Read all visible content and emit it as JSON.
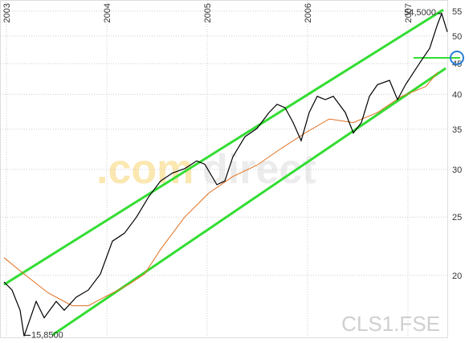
{
  "chart_data": {
    "type": "line",
    "log_scale": true,
    "grid": true,
    "xlim": [
      2002.936,
      2007.4
    ],
    "xticks": [
      2003,
      2004,
      2005,
      2006,
      2007
    ],
    "ylim": [
      15.77,
      57.4
    ],
    "yticks": [
      20,
      25,
      30,
      35,
      40,
      45,
      50,
      55
    ],
    "series": [
      {
        "color": "#000000",
        "x": [
          2002.976,
          2003.056,
          2003.136,
          2003.176,
          2003.296,
          2003.376,
          2003.496,
          2003.576,
          2003.696,
          2003.816,
          2003.936,
          2004.056,
          2004.176,
          2004.296,
          2004.416,
          2004.536,
          2004.656,
          2004.776,
          2004.896,
          2004.976,
          2005.096,
          2005.176,
          2005.256,
          2005.376,
          2005.496,
          2005.616,
          2005.696,
          2005.776,
          2005.856,
          2005.936,
          2006.016,
          2006.096,
          2006.176,
          2006.256,
          2006.376,
          2006.456,
          2006.536,
          2006.616,
          2006.696,
          2006.816,
          2006.896,
          2006.976,
          2007.056,
          2007.136,
          2007.216,
          2007.296,
          2007.336,
          2007.392
        ],
        "values": [
          19.5,
          18.9,
          17.5,
          15.85,
          18.1,
          17.0,
          18.1,
          17.5,
          18.4,
          18.9,
          20.1,
          22.8,
          23.5,
          25.0,
          27.0,
          28.7,
          29.6,
          30.1,
          31.0,
          30.6,
          28.3,
          28.7,
          31.5,
          34.0,
          35.1,
          37.3,
          38.5,
          38.0,
          35.9,
          33.5,
          37.3,
          39.7,
          39.2,
          39.7,
          37.3,
          34.5,
          35.9,
          39.7,
          41.5,
          42.2,
          39.2,
          41.5,
          43.5,
          45.6,
          47.7,
          52.4,
          54.5,
          50.8
        ]
      },
      {
        "color": "#e07020",
        "x": [
          2002.976,
          2003.176,
          2003.416,
          2003.656,
          2003.816,
          2003.976,
          2004.216,
          2004.376,
          2004.536,
          2004.776,
          2005.016,
          2005.256,
          2005.496,
          2005.736,
          2005.976,
          2006.216,
          2006.456,
          2006.696,
          2006.936,
          2007.176,
          2007.296
        ],
        "values": [
          21.4,
          20.1,
          18.7,
          17.8,
          17.8,
          18.4,
          19.3,
          20.1,
          22.1,
          25.0,
          27.4,
          29.2,
          30.5,
          32.5,
          34.5,
          36.4,
          35.9,
          37.3,
          39.7,
          41.2,
          43.5
        ]
      }
    ],
    "channel": {
      "color": "#33dd33",
      "lines": [
        {
          "x": [
            2002.976,
            2007.352
          ],
          "values": [
            19.3,
            55.3
          ]
        },
        {
          "x": [
            2003.456,
            2007.376
          ],
          "values": [
            15.9,
            44.2
          ]
        }
      ],
      "level": {
        "x": [
          2007.056,
          2007.52
        ],
        "value": 46.0
      }
    },
    "annotations": [
      {
        "text": "54,5000",
        "x": 2007.336,
        "y": 54.5
      },
      {
        "text": "15,8500",
        "x": 2003.176,
        "y": 15.85
      }
    ],
    "watermark": [
      ".com",
      "direct"
    ],
    "symbol": "CLS1.FSE"
  }
}
